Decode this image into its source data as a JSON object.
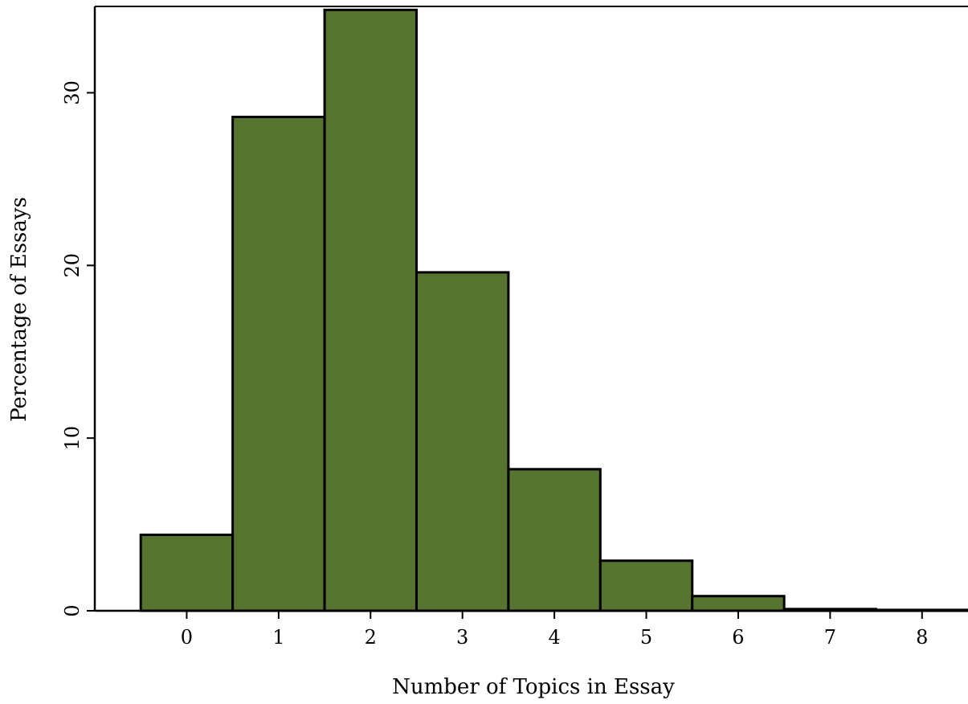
{
  "chart_data": {
    "type": "bar",
    "title": "",
    "xlabel": "Number of Topics in Essay",
    "ylabel": "Percentage of Essays",
    "categories": [
      "0",
      "1",
      "2",
      "3",
      "4",
      "5",
      "6",
      "7",
      "8"
    ],
    "values": [
      4.4,
      28.6,
      34.8,
      19.6,
      8.2,
      2.9,
      0.85,
      0.1,
      0.05
    ],
    "xticks": [
      "0",
      "1",
      "2",
      "3",
      "4",
      "5",
      "6",
      "7",
      "8"
    ],
    "yticks": [
      "0",
      "10",
      "20",
      "30"
    ],
    "xlim": [
      -1,
      8.5
    ],
    "ylim": [
      0,
      35
    ],
    "grid": false,
    "legend": "none",
    "bar_color": "#56742f",
    "edge_color": "#000000"
  }
}
